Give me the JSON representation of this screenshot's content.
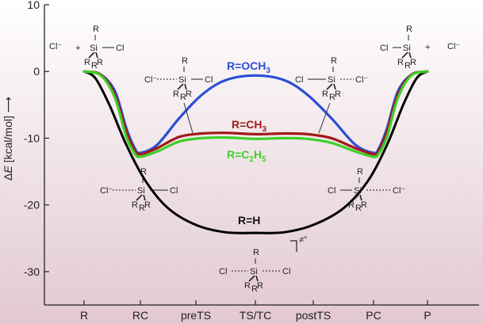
{
  "chart_data": {
    "type": "line",
    "ylabel_prefix": "Δ",
    "ylabel_var": "E",
    "ylabel_unit": " [kcal/mol] ⟶",
    "ylim": [
      -35,
      10
    ],
    "yticks": [
      10,
      0,
      -10,
      -20,
      -30
    ],
    "categories": [
      "R",
      "RC",
      "preTS",
      "TS/TC",
      "postTS",
      "PC",
      "P"
    ],
    "grid": false,
    "series": [
      {
        "name": "R=H",
        "color": "#000000",
        "label_parts": [
          {
            "t": "R=H"
          }
        ],
        "points": [
          [
            0,
            0
          ],
          [
            0.2,
            -1
          ],
          [
            0.45,
            -5
          ],
          [
            0.75,
            -11
          ],
          [
            1.1,
            -16.5
          ],
          [
            1.5,
            -20.5
          ],
          [
            2,
            -23
          ],
          [
            2.5,
            -24.1
          ],
          [
            3,
            -24.2
          ],
          [
            3.5,
            -24.1
          ],
          [
            4,
            -23
          ],
          [
            4.5,
            -20.5
          ],
          [
            4.9,
            -16.5
          ],
          [
            5.25,
            -11
          ],
          [
            5.55,
            -5
          ],
          [
            5.8,
            -1
          ],
          [
            6,
            0
          ]
        ]
      },
      {
        "name": "R=OCH3",
        "color": "#2a4fd6",
        "label_parts": [
          {
            "t": "R=OCH"
          },
          {
            "t": "3",
            "sub": true
          }
        ],
        "points": [
          [
            0,
            0
          ],
          [
            0.3,
            -0.5
          ],
          [
            0.55,
            -3
          ],
          [
            0.75,
            -8.5
          ],
          [
            0.9,
            -11.5
          ],
          [
            1,
            -12.2
          ],
          [
            1.3,
            -11
          ],
          [
            1.7,
            -7
          ],
          [
            2.1,
            -3.5
          ],
          [
            2.5,
            -1.3
          ],
          [
            3,
            -0.6
          ],
          [
            3.5,
            -1.3
          ],
          [
            3.9,
            -3.5
          ],
          [
            4.3,
            -7
          ],
          [
            4.7,
            -11
          ],
          [
            5,
            -12.2
          ],
          [
            5.1,
            -11.5
          ],
          [
            5.25,
            -8.5
          ],
          [
            5.45,
            -3
          ],
          [
            5.7,
            -0.5
          ],
          [
            6,
            0
          ]
        ]
      },
      {
        "name": "R=CH3",
        "color": "#a01a1a",
        "label_parts": [
          {
            "t": "R=CH"
          },
          {
            "t": "3",
            "sub": true
          }
        ],
        "points": [
          [
            0,
            0
          ],
          [
            0.3,
            -0.5
          ],
          [
            0.55,
            -3.5
          ],
          [
            0.75,
            -9
          ],
          [
            0.9,
            -11.8
          ],
          [
            1,
            -12.4
          ],
          [
            1.3,
            -11.5
          ],
          [
            1.7,
            -9.8
          ],
          [
            2.1,
            -9.3
          ],
          [
            2.5,
            -9.2
          ],
          [
            3,
            -9.4
          ],
          [
            3.5,
            -9.3
          ],
          [
            3.9,
            -9.4
          ],
          [
            4.3,
            -10
          ],
          [
            4.7,
            -11.5
          ],
          [
            5,
            -12.4
          ],
          [
            5.1,
            -11.8
          ],
          [
            5.25,
            -9
          ],
          [
            5.45,
            -3.5
          ],
          [
            5.7,
            -0.5
          ],
          [
            6,
            0
          ]
        ]
      },
      {
        "name": "R=C2H5",
        "color": "#3ecf2a",
        "label_parts": [
          {
            "t": "R=C"
          },
          {
            "t": "2",
            "sub": true
          },
          {
            "t": "H"
          },
          {
            "t": "5",
            "sub": true
          }
        ],
        "points": [
          [
            0,
            0
          ],
          [
            0.3,
            -0.6
          ],
          [
            0.55,
            -4
          ],
          [
            0.75,
            -9.8
          ],
          [
            0.9,
            -12.3
          ],
          [
            1,
            -12.8
          ],
          [
            1.3,
            -12
          ],
          [
            1.7,
            -10.5
          ],
          [
            2.1,
            -10
          ],
          [
            2.5,
            -9.9
          ],
          [
            3,
            -10.1
          ],
          [
            3.5,
            -10
          ],
          [
            3.9,
            -10.1
          ],
          [
            4.3,
            -10.7
          ],
          [
            4.7,
            -12
          ],
          [
            5,
            -12.8
          ],
          [
            5.1,
            -12.3
          ],
          [
            5.25,
            -9.8
          ],
          [
            5.45,
            -4
          ],
          [
            5.7,
            -0.6
          ],
          [
            6,
            0
          ]
        ]
      }
    ],
    "annotations": {
      "ts_symbol": "‡",
      "ts_super": "≠°",
      "structures": {
        "reactants": {
          "cl_ion": "Cl⁻",
          "plus": "+",
          "r": "R",
          "si": "Si",
          "cl": "Cl"
        },
        "products": {
          "cl_ion": "Cl⁻",
          "plus": "+",
          "r": "R",
          "si": "Si",
          "cl": "Cl"
        },
        "pre_ts": {
          "r": "R",
          "si": "Si",
          "cl_ion": "Cl⁻",
          "cl": "Cl"
        },
        "post_ts": {
          "r": "R",
          "si": "Si",
          "cl_ion": "Cl⁻",
          "cl": "Cl"
        },
        "rc": {
          "r": "R",
          "si": "Si",
          "cl_ion": "Cl⁻",
          "cl": "Cl"
        },
        "pc": {
          "r": "R",
          "si": "Si",
          "cl_ion": "Cl⁻",
          "cl": "Cl"
        },
        "ts": {
          "r": "R",
          "si": "Si",
          "cl": "Cl"
        }
      }
    }
  }
}
